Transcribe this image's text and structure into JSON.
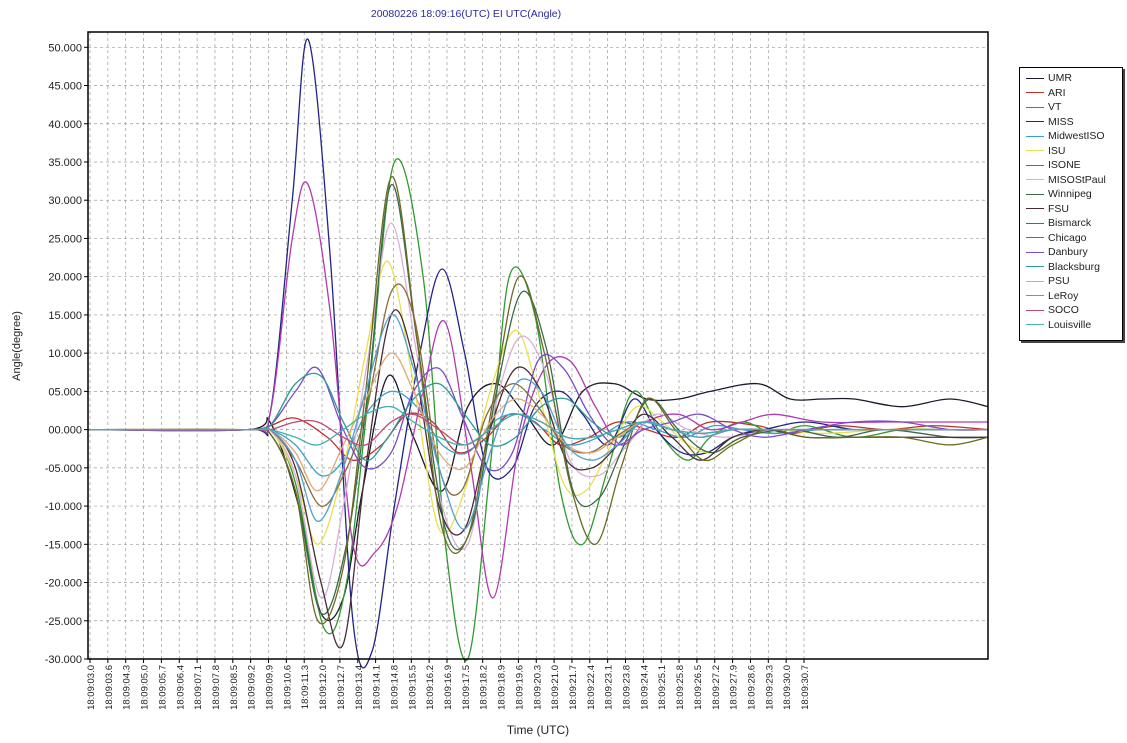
{
  "chart_data": {
    "type": "line",
    "title": "20080226 18:09:16(UTC) EI UTC(Angle)",
    "xlabel": "Time (UTC)",
    "ylabel": "Angle(degree)",
    "ylim": [
      -30,
      52
    ],
    "yticks": [
      -30,
      -25,
      -20,
      -15,
      -10,
      -5,
      0,
      5,
      10,
      15,
      20,
      25,
      30,
      35,
      40,
      45,
      50
    ],
    "ytick_labels": [
      "-30.000",
      "-25.000",
      "-20.000",
      "-15.000",
      "-10.000",
      "-05.000",
      "00.000",
      "05.000",
      "10.000",
      "15.000",
      "20.000",
      "25.000",
      "30.000",
      "35.000",
      "40.000",
      "45.000",
      "50.000"
    ],
    "xlim": [
      3.0,
      31.2
    ],
    "x_tick_labels": [
      "18:09:03.0",
      "18:09:03.6",
      "18:09:04.3",
      "18:09:05.0",
      "18:09:05.7",
      "18:09:06.4",
      "18:09:07.1",
      "18:09:07.8",
      "18:09:08.5",
      "18:09:09.2",
      "18:09:09.9",
      "18:09:10.6",
      "18:09:11.3",
      "18:09:12.0",
      "18:09:12.7",
      "18:09:13.4",
      "18:09:14.1",
      "18:09:14.8",
      "18:09:15.5",
      "18:09:16.2",
      "18:09:16.9",
      "18:09:17.5",
      "18:09:18.2",
      "18:09:18.9",
      "18:09:19.6",
      "18:09:20.3",
      "18:09:21.0",
      "18:09:21.7",
      "18:09:22.4",
      "18:09:23.1",
      "18:09:23.8",
      "18:09:24.4",
      "18:09:25.1",
      "18:09:25.8",
      "18:09:26.5",
      "18:09:27.2",
      "18:09:27.9",
      "18:09:28.6",
      "18:09:29.3",
      "18:09:30.0",
      "18:09:30.7"
    ],
    "x_unit": "seconds after 18:09:00",
    "grid": true,
    "legend_position": "right",
    "series": [
      {
        "name": "UMR",
        "color": "#1a1a2a",
        "x": [
          3,
          8,
          8.7,
          9.6,
          10.3,
          11,
          11.6,
          12.4,
          13.2,
          14.1,
          14.9,
          15.8,
          16.7,
          17.6,
          18.5,
          19.5,
          20.5,
          21.5,
          22.5,
          24,
          25,
          26,
          27,
          28.5,
          30,
          31.2
        ],
        "y": [
          0,
          0,
          1,
          -10,
          -24,
          -22,
          -8,
          7,
          -1,
          -8,
          3,
          6,
          2,
          -2,
          5,
          6,
          4,
          4,
          5,
          6,
          4,
          4,
          4,
          3,
          4,
          3
        ]
      },
      {
        "name": "ARI",
        "color": "#c0302a",
        "x": [
          3,
          8,
          8.7,
          9.5,
          10.5,
          11.3,
          12.2,
          13,
          13.8,
          14.6,
          15.5,
          16.2,
          17,
          17.8,
          18.7,
          19.6,
          20.5,
          21.5,
          22.5,
          24,
          25,
          26.5,
          28,
          29.5,
          31.2
        ],
        "y": [
          0,
          0,
          0.5,
          1.5,
          -1,
          -4,
          -2,
          2,
          1,
          -3,
          -1,
          2,
          1,
          -2,
          -1,
          1,
          0,
          -1,
          1,
          0.5,
          -0.5,
          0.5,
          0,
          0.5,
          0
        ]
      },
      {
        "name": "VT",
        "color": "#2f9a2f",
        "x": [
          3,
          8,
          8.7,
          9.5,
          10.4,
          11.1,
          11.8,
          12.6,
          13.5,
          14.2,
          14.9,
          15.6,
          16.2,
          17,
          17.8,
          18.5,
          19.3,
          20.1,
          21,
          21.8,
          22.5,
          23.5,
          24.5,
          25.5,
          27,
          28.5,
          30,
          31.2
        ],
        "y": [
          0,
          0,
          0,
          -7,
          -26,
          -20,
          5,
          35,
          20,
          -15,
          -30,
          -5,
          20,
          15,
          -8,
          -15,
          -5,
          5,
          -1,
          -4,
          -1,
          1,
          -0.5,
          0.5,
          -1,
          0,
          0,
          0
        ]
      },
      {
        "name": "MISS",
        "color": "#222288",
        "x": [
          3,
          8,
          8.7,
          9.4,
          9.9,
          10.6,
          11.3,
          11.9,
          12.6,
          13.4,
          14.1,
          14.8,
          15.5,
          16.3,
          17,
          17.8,
          18.5,
          19.3,
          20.1,
          20.8,
          21.6,
          22.4,
          23.2,
          24.2,
          25.5,
          27,
          28.5,
          30,
          31.2
        ],
        "y": [
          0,
          0,
          2,
          30,
          51,
          22,
          -25,
          -29,
          -10,
          10,
          21,
          10,
          -5,
          -5,
          3,
          5,
          2,
          -2,
          4,
          0,
          -3,
          -3,
          -1,
          0,
          1,
          0,
          0,
          0,
          0
        ]
      },
      {
        "name": "MidwestISO",
        "color": "#3aa0c8",
        "x": [
          3,
          8,
          8.7,
          9.5,
          10.3,
          11,
          11.7,
          12.5,
          13.3,
          14.1,
          14.9,
          15.7,
          16.5,
          17.3,
          18.1,
          19,
          19.9,
          20.8,
          21.7,
          22.6,
          23.5,
          24.5,
          26,
          28,
          30,
          31.2
        ],
        "y": [
          0,
          0,
          0,
          -2,
          -6,
          -4,
          2,
          5,
          3,
          -2,
          -3,
          1,
          2,
          0,
          -2,
          -1,
          1,
          0,
          -1,
          0.5,
          0,
          -0.5,
          0,
          0,
          0,
          0
        ]
      },
      {
        "name": "ISU",
        "color": "#e8e050",
        "x": [
          3,
          8,
          8.7,
          9.5,
          10.2,
          11,
          11.7,
          12.4,
          13.2,
          14,
          14.8,
          15.6,
          16.4,
          17.1,
          17.9,
          18.6,
          19.4,
          20.2,
          21,
          21.8,
          22.6,
          23.5,
          24.5,
          26,
          28,
          30,
          31.2
        ],
        "y": [
          0,
          0,
          0,
          -6,
          -15,
          -5,
          10,
          22,
          6,
          -13,
          -8,
          5,
          13,
          5,
          -7,
          -8,
          -2,
          3,
          1,
          -2,
          -3,
          -1,
          0,
          -0.5,
          0,
          0,
          0
        ]
      },
      {
        "name": "ISONE",
        "color": "#b03ab0",
        "x": [
          3,
          8,
          8.7,
          9.4,
          9.9,
          10.6,
          11.3,
          12,
          12.7,
          13.5,
          14.2,
          15,
          15.7,
          16.5,
          17.3,
          18.1,
          18.9,
          19.7,
          20.5,
          21.5,
          22.5,
          23.5,
          24.5,
          26,
          28,
          30,
          31.2
        ],
        "y": [
          0,
          0,
          2,
          25,
          32,
          15,
          -15,
          -16,
          -10,
          5,
          14,
          -5,
          -22,
          -2,
          8,
          9,
          3,
          -2,
          1,
          2,
          0,
          1,
          2,
          1,
          1,
          1,
          1
        ]
      },
      {
        "name": "MISOStPaul",
        "color": "#d8b0d8",
        "x": [
          3,
          8,
          8.7,
          9.5,
          10.3,
          11,
          11.8,
          12.5,
          13.3,
          14.1,
          14.9,
          15.7,
          16.5,
          17.3,
          18.1,
          19,
          19.9,
          20.8,
          21.8,
          23,
          24.5,
          26,
          28,
          30,
          31.2
        ],
        "y": [
          0,
          0,
          0,
          -6,
          -22,
          -10,
          10,
          27,
          10,
          -10,
          -15,
          2,
          12,
          8,
          -4,
          -6,
          -2,
          2,
          0,
          -1,
          0,
          0,
          0,
          0,
          0
        ]
      },
      {
        "name": "Winnipeg",
        "color": "#3a6a4a",
        "x": [
          3,
          8,
          8.7,
          9.5,
          10.3,
          11.1,
          11.8,
          12.5,
          13.3,
          14.2,
          15,
          15.8,
          16.6,
          17.4,
          18.2,
          19,
          19.8,
          20.6,
          21.5,
          22.5,
          23.5,
          25,
          26.5,
          28,
          30,
          31.2
        ],
        "y": [
          0,
          0,
          -0.5,
          -8,
          -24,
          -15,
          6,
          32,
          12,
          -13,
          -13,
          5,
          18,
          10,
          -8,
          -9,
          -2,
          4,
          0,
          -3,
          -1,
          0,
          -1,
          0,
          -1,
          -1
        ]
      },
      {
        "name": "FSU",
        "color": "#4a2a3a",
        "x": [
          3,
          8,
          8.7,
          9.5,
          10.3,
          11,
          11.7,
          12.5,
          13.2,
          14,
          14.8,
          15.6,
          16.4,
          17.2,
          18,
          18.8,
          19.6,
          20.4,
          21.3,
          22.2,
          23.2,
          24.3,
          25.5,
          27,
          28.5,
          30,
          31.2
        ],
        "y": [
          0,
          0,
          0,
          -5,
          -20,
          -28,
          -5,
          15,
          9,
          -10,
          -13,
          0,
          8,
          5,
          -4,
          -5,
          -2,
          2,
          -1,
          -4,
          -1,
          0,
          -1,
          -1,
          -1,
          -1,
          -1
        ]
      },
      {
        "name": "Bismarck",
        "color": "#6a6a20",
        "x": [
          3,
          8,
          8.7,
          9.5,
          10.2,
          11,
          11.7,
          12.5,
          13.3,
          14.1,
          14.9,
          15.7,
          16.5,
          17.3,
          18.1,
          18.9,
          19.7,
          20.5,
          21.4,
          22.3,
          23.2,
          24.3,
          25.5,
          27,
          28.5,
          30,
          31.2
        ],
        "y": [
          0,
          0,
          -0.5,
          -8,
          -25,
          -18,
          5,
          33,
          12,
          -13,
          -14,
          4,
          20,
          10,
          -7,
          -15,
          -5,
          4,
          0,
          -4,
          -2,
          0,
          -1,
          -1,
          -1,
          -2,
          -1
        ]
      },
      {
        "name": "Chicago",
        "color": "#8a6a3a",
        "x": [
          3,
          8,
          8.7,
          9.5,
          10.3,
          11,
          11.7,
          12.5,
          13.2,
          14,
          14.7,
          15.5,
          16.3,
          17.1,
          17.9,
          18.7,
          19.5,
          20.4,
          21.3,
          22.2,
          23.2,
          24.3,
          25.5,
          27,
          28.5,
          30,
          31.2
        ],
        "y": [
          0,
          0,
          0,
          -4,
          -10,
          -6,
          2,
          18,
          15,
          -5,
          -8,
          2,
          6,
          3,
          -2,
          -3,
          -1,
          1,
          0,
          -1,
          0,
          0,
          0,
          0,
          0,
          0,
          0
        ]
      },
      {
        "name": "Danbury",
        "color": "#7a4ac8",
        "x": [
          3,
          8,
          8.7,
          9.5,
          10.2,
          11,
          11.7,
          12.5,
          13.2,
          14,
          14.7,
          15.5,
          16.3,
          17.1,
          17.9,
          18.7,
          19.5,
          20.4,
          21.3,
          22.2,
          23.2,
          24.2,
          25.5,
          27,
          28.5,
          30,
          31.2
        ],
        "y": [
          0,
          0,
          0.5,
          5,
          8,
          0,
          -5,
          -3,
          5,
          8,
          2,
          -5,
          -3,
          9,
          8,
          2,
          -2,
          0,
          1,
          2,
          0,
          -1,
          0,
          1,
          1,
          0,
          0
        ]
      },
      {
        "name": "Blacksburg",
        "color": "#2a9a9a",
        "x": [
          3,
          8,
          8.7,
          9.5,
          10.3,
          11,
          11.7,
          12.4,
          13.2,
          14,
          14.8,
          15.6,
          16.4,
          17.2,
          18,
          18.8,
          19.6,
          20.4,
          21.3,
          22.2,
          23.2,
          24.3,
          25.5,
          27,
          28.5,
          30,
          31.2
        ],
        "y": [
          0,
          0,
          0.5,
          6,
          7,
          1,
          -4,
          -1,
          4,
          6,
          2,
          -2,
          -1,
          3,
          4,
          1,
          -1,
          1,
          0,
          -1,
          0,
          0,
          0,
          0,
          0,
          0,
          0
        ]
      },
      {
        "name": "PSU",
        "color": "#e0a878",
        "x": [
          3,
          8,
          8.7,
          9.5,
          10.2,
          11,
          11.7,
          12.5,
          13.2,
          14,
          14.8,
          15.6,
          16.4,
          17.2,
          18,
          18.8,
          19.6,
          20.4,
          21.3,
          22.2,
          23.2,
          24.3,
          25.5,
          27,
          28.5,
          30,
          31.2
        ],
        "y": [
          0,
          0,
          0,
          -3,
          -8,
          -2,
          4,
          10,
          5,
          -3,
          -5,
          1,
          4,
          2,
          -2,
          -3,
          -1,
          1,
          0,
          -1,
          0,
          0,
          0,
          0,
          0,
          0,
          0
        ]
      },
      {
        "name": "LeRoy",
        "color": "#50a0d0",
        "x": [
          3,
          8,
          8.7,
          9.5,
          10.2,
          11,
          11.7,
          12.5,
          13.2,
          14,
          14.8,
          15.6,
          16.4,
          17.2,
          18,
          18.8,
          19.6,
          20.4,
          21.3,
          22.2,
          23.2,
          24.3,
          25.5,
          27,
          28.5,
          30,
          31.2
        ],
        "y": [
          0,
          0,
          0,
          -4,
          -12,
          -5,
          5,
          15,
          8,
          -5,
          -13,
          -3,
          6,
          5,
          -2,
          -4,
          -2,
          1,
          0,
          -1,
          0,
          0,
          0,
          0,
          0,
          0,
          0
        ]
      },
      {
        "name": "SOCO",
        "color": "#c04a70",
        "x": [
          3,
          8,
          8.7,
          9.5,
          10.2,
          11,
          11.7,
          12.5,
          13.2,
          14,
          14.8,
          15.6,
          16.4,
          17.2,
          18,
          18.8,
          19.6,
          20.4,
          21.3,
          22.2,
          23.2,
          24.3,
          25.5,
          27,
          28.5,
          30,
          31.2
        ],
        "y": [
          0,
          0,
          0,
          1,
          1,
          -1,
          -2,
          1,
          2,
          0,
          -2,
          0,
          2,
          1,
          -1,
          -1,
          0,
          1,
          0,
          -0.5,
          0,
          0,
          0,
          0,
          0,
          0,
          0
        ]
      },
      {
        "name": "Louisville",
        "color": "#40b0b0",
        "x": [
          3,
          8,
          8.7,
          9.5,
          10.2,
          11,
          11.7,
          12.5,
          13.2,
          14,
          14.8,
          15.6,
          16.4,
          17.2,
          18,
          18.8,
          19.6,
          20.4,
          21.3,
          22.2,
          23.2,
          24.3,
          25.5,
          27,
          28.5,
          30,
          31.2
        ],
        "y": [
          0,
          0,
          0,
          -1,
          -2,
          0,
          2,
          3,
          1,
          -1,
          -2,
          0,
          2,
          1,
          -1,
          -1,
          0,
          1,
          0,
          -0.5,
          0,
          0,
          0,
          0,
          0,
          0,
          0
        ]
      }
    ]
  }
}
